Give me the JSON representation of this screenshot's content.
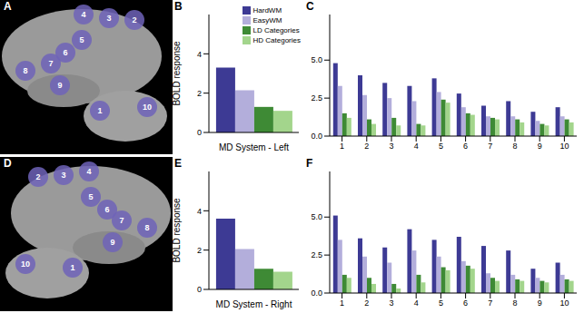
{
  "panel_labels": [
    "A",
    "B",
    "C",
    "D",
    "E",
    "F"
  ],
  "chart_data": [
    {
      "type": "bar",
      "x_label": "MD System - Left",
      "y_label": "BOLD response",
      "categories": [
        null
      ],
      "series": [
        {
          "name": "HardWM",
          "color": "#3d3a94",
          "values": [
            3.3
          ]
        },
        {
          "name": "EasyWM",
          "color": "#b3aedb",
          "values": [
            2.15
          ]
        },
        {
          "name": "LD Categories",
          "color": "#3e8a35",
          "values": [
            1.3
          ]
        },
        {
          "name": "HD Categories",
          "color": "#a3d58c",
          "values": [
            1.1
          ]
        }
      ],
      "ylim": [
        0,
        6
      ],
      "yticks": [
        0,
        2,
        4
      ],
      "tick_labels": "y",
      "legend": "top-right"
    },
    {
      "type": "bar",
      "categories": [
        "1",
        "2",
        "3",
        "4",
        "5",
        "6",
        "7",
        "8",
        "9",
        "10"
      ],
      "series": [
        {
          "name": "HardWM",
          "color": "#3d3a94",
          "values": [
            4.8,
            4.0,
            3.5,
            3.3,
            3.8,
            2.8,
            2.0,
            2.3,
            1.6,
            1.9
          ]
        },
        {
          "name": "EasyWM",
          "color": "#b3aedb",
          "values": [
            3.3,
            2.7,
            2.5,
            2.3,
            2.9,
            1.9,
            1.3,
            1.3,
            1.0,
            1.3
          ]
        },
        {
          "name": "LD Categories",
          "color": "#3e8a35",
          "values": [
            1.5,
            1.1,
            1.2,
            0.8,
            2.4,
            1.5,
            1.2,
            1.1,
            0.8,
            1.1
          ]
        },
        {
          "name": "HD Categories",
          "color": "#a3d58c",
          "values": [
            1.2,
            0.8,
            0.7,
            0.7,
            2.2,
            1.4,
            1.1,
            0.9,
            0.7,
            0.9
          ]
        }
      ],
      "ylim": [
        0,
        8
      ],
      "yticks": [
        {
          "value": 0,
          "label": "0.0"
        },
        {
          "value": 2.5,
          "label": "2.5"
        },
        {
          "value": 5,
          "label": "5.0"
        }
      ]
    },
    {
      "type": "bar",
      "x_label": "MD System - Right",
      "y_label": "BOLD response",
      "categories": [
        null
      ],
      "series": [
        {
          "name": "HardWM",
          "color": "#3d3a94",
          "values": [
            3.6
          ]
        },
        {
          "name": "EasyWM",
          "color": "#b3aedb",
          "values": [
            2.05
          ]
        },
        {
          "name": "LD Categories",
          "color": "#3e8a35",
          "values": [
            1.05
          ]
        },
        {
          "name": "HD Categories",
          "color": "#a3d58c",
          "values": [
            0.9
          ]
        }
      ],
      "ylim": [
        0,
        6
      ],
      "yticks": [
        0,
        2,
        4
      ],
      "tick_labels": "y"
    },
    {
      "type": "bar",
      "categories": [
        "1",
        "2",
        "3",
        "4",
        "5",
        "6",
        "7",
        "8",
        "9",
        "10"
      ],
      "series": [
        {
          "name": "HardWM",
          "color": "#3d3a94",
          "values": [
            5.1,
            3.6,
            3.0,
            4.2,
            3.5,
            3.7,
            3.1,
            2.8,
            1.6,
            2.0
          ]
        },
        {
          "name": "EasyWM",
          "color": "#b3aedb",
          "values": [
            3.5,
            2.4,
            2.0,
            2.8,
            2.4,
            2.1,
            1.3,
            1.2,
            1.0,
            1.2
          ]
        },
        {
          "name": "LD Categories",
          "color": "#3e8a35",
          "values": [
            1.2,
            1.0,
            0.6,
            1.2,
            1.7,
            1.8,
            1.0,
            0.9,
            0.8,
            0.9
          ]
        },
        {
          "name": "HD Categories",
          "color": "#a3d58c",
          "values": [
            1.0,
            0.6,
            0.3,
            0.7,
            1.5,
            1.6,
            0.8,
            0.8,
            0.7,
            0.8
          ]
        }
      ],
      "ylim": [
        0,
        8
      ],
      "yticks": [
        {
          "value": 0,
          "label": "0.0"
        },
        {
          "value": 2.5,
          "label": "2.5"
        },
        {
          "value": 5,
          "label": "5.0"
        }
      ]
    }
  ]
}
